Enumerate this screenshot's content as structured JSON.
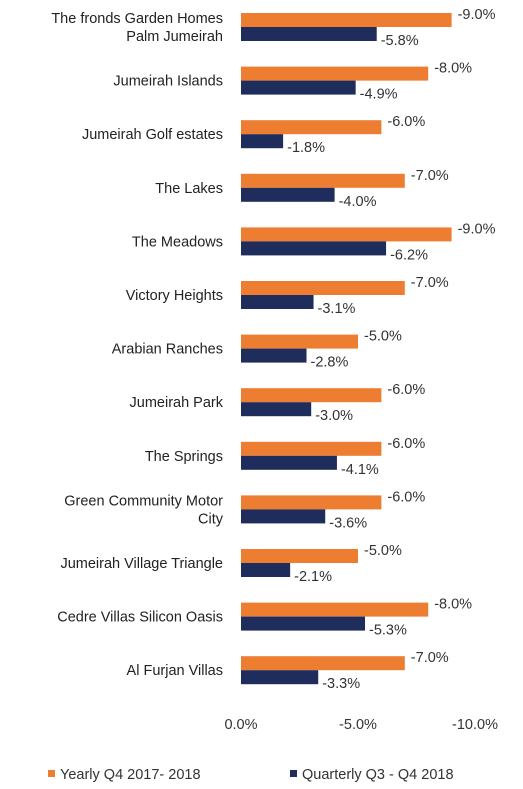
{
  "chart_data": {
    "type": "bar",
    "orientation": "horizontal",
    "x_reversed": true,
    "categories": [
      [
        "The fronds Garden Homes",
        "Palm Jumeirah"
      ],
      [
        "Jumeirah Islands"
      ],
      [
        "Jumeirah Golf estates"
      ],
      [
        "The Lakes"
      ],
      [
        "The Meadows"
      ],
      [
        "Victory Heights"
      ],
      [
        "Arabian Ranches"
      ],
      [
        "Jumeirah Park"
      ],
      [
        "The Springs"
      ],
      [
        "Green Community Motor",
        "City"
      ],
      [
        "Jumeirah Village Triangle"
      ],
      [
        "Cedre Villas Silicon Oasis"
      ],
      [
        "Al Furjan Villas"
      ]
    ],
    "series": [
      {
        "name": "Yearly Q4  2017- 2018",
        "color": "#ED7D31",
        "values": [
          -9.0,
          -8.0,
          -6.0,
          -7.0,
          -9.0,
          -7.0,
          -5.0,
          -6.0,
          -6.0,
          -6.0,
          -5.0,
          -8.0,
          -7.0
        ],
        "labels": [
          "-9.0%",
          "-8.0%",
          "-6.0%",
          "-7.0%",
          "-9.0%",
          "-7.0%",
          "-5.0%",
          "-6.0%",
          "-6.0%",
          "-6.0%",
          "-5.0%",
          "-8.0%",
          "-7.0%"
        ]
      },
      {
        "name": "Quarterly Q3 - Q4 2018",
        "color": "#1F2D5C",
        "values": [
          -5.8,
          -4.9,
          -1.8,
          -4.0,
          -6.2,
          -3.1,
          -2.8,
          -3.0,
          -4.1,
          -3.6,
          -2.1,
          -5.3,
          -3.3
        ],
        "labels": [
          "-5.8%",
          "-4.9%",
          "-1.8%",
          "-4.0%",
          "-6.2%",
          "-3.1%",
          "-2.8%",
          "-3.0%",
          "-4.1%",
          "-3.6%",
          "-2.1%",
          "-5.3%",
          "-3.3%"
        ]
      }
    ],
    "xlim": [
      0,
      -10
    ],
    "x_ticks": [
      0,
      -5,
      -10
    ],
    "x_tick_labels": [
      "0.0%",
      "-5.0%",
      "-10.0%"
    ],
    "grid": false,
    "legend_position": "bottom"
  }
}
